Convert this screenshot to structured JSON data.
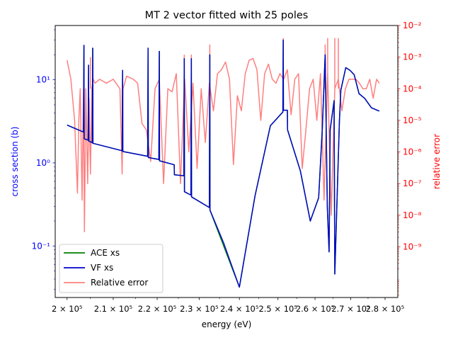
{
  "chart_data": {
    "type": "line",
    "title": "MT 2 vector fitted with 25 poles",
    "xlabel": "energy (eV)",
    "ylabel_left": "cross section (b)",
    "ylabel_right": "relative error",
    "x_scale": "log",
    "y_left_scale": "log",
    "y_right_scale": "log",
    "xlim": [
      197500,
      283800
    ],
    "ylim_left": [
      0.024,
      45
    ],
    "ylim_right": [
      2.5e-11,
      0.01
    ],
    "x_ticks": [
      {
        "value": 200000,
        "label": "2 × 10⁵"
      },
      {
        "value": 210000,
        "label": "2.1 × 10⁵"
      },
      {
        "value": 220000,
        "label": "2.2 × 10⁵"
      },
      {
        "value": 230000,
        "label": "2.3 × 10⁵"
      },
      {
        "value": 240000,
        "label": "2.4 × 10⁵"
      },
      {
        "value": 250000,
        "label": "2.5 × 10⁵"
      },
      {
        "value": 260000,
        "label": "2.6 × 10⁵"
      },
      {
        "value": 270000,
        "label": "2.7 × 10⁵"
      },
      {
        "value": 280000,
        "label": "2.8 × 10⁵"
      }
    ],
    "y_left_ticks": [
      {
        "value": 0.1,
        "label": "10⁻¹"
      },
      {
        "value": 1,
        "label": "10⁰"
      },
      {
        "value": 10,
        "label": "10¹"
      }
    ],
    "y_right_ticks": [
      {
        "value": 1e-09,
        "label": "10⁻⁹"
      },
      {
        "value": 1e-08,
        "label": "10⁻⁸"
      },
      {
        "value": 1e-07,
        "label": "10⁻⁷"
      },
      {
        "value": 1e-06,
        "label": "10⁻⁶"
      },
      {
        "value": 1e-05,
        "label": "10⁻⁵"
      },
      {
        "value": 0.0001,
        "label": "10⁻⁴"
      },
      {
        "value": 0.001,
        "label": "10⁻³"
      },
      {
        "value": 0.01,
        "label": "10⁻²"
      }
    ],
    "left_axis_color": "#0000ff",
    "right_axis_color": "#ff0000",
    "legend_position": "lower-left",
    "series": [
      {
        "name": "ACE xs",
        "axis": "left",
        "color": "#008000",
        "x": [
          200000,
          203500,
          203600,
          203650,
          204500,
          204600,
          204650,
          205400,
          205500,
          205550,
          212000,
          212100,
          212150,
          217800,
          217900,
          217950,
          220400,
          220500,
          220550,
          224000,
          224050,
          226300,
          226400,
          226450,
          228000,
          228100,
          228150,
          232500,
          232600,
          232650,
          240000,
          244000,
          248000,
          251300,
          251400,
          251450,
          252500,
          252550,
          256000,
          258700,
          261000,
          262000,
          262800,
          263400,
          263900,
          264200,
          265300,
          265500,
          266800,
          267200,
          268600,
          269800,
          271000,
          272400,
          274000,
          276000,
          278300
        ],
        "y": [
          2.85,
          2.35,
          26,
          1.95,
          1.88,
          15,
          1.83,
          1.75,
          24,
          1.72,
          1.4,
          13,
          1.37,
          1.2,
          24,
          1.16,
          1.1,
          22,
          1.06,
          0.95,
          0.72,
          0.7,
          18,
          0.45,
          0.41,
          18,
          0.39,
          0.29,
          20,
          0.27,
          0.032,
          0.4,
          2.8,
          4.1,
          30,
          4.3,
          4.3,
          2.5,
          0.8,
          0.2,
          0.38,
          2.5,
          20,
          0.3,
          0.085,
          2.5,
          5.6,
          0.046,
          3.2,
          7.5,
          14,
          13,
          11.5,
          6.8,
          6,
          4.6,
          4.2
        ]
      },
      {
        "name": "VF xs",
        "axis": "left",
        "color": "#0000cc",
        "x": [
          200000,
          203500,
          203600,
          203650,
          204500,
          204600,
          204650,
          205400,
          205500,
          205550,
          212000,
          212100,
          212150,
          217800,
          217900,
          217950,
          220400,
          220500,
          220550,
          224000,
          224050,
          226300,
          226400,
          226450,
          228000,
          228100,
          228150,
          232500,
          232600,
          232650,
          236000,
          240000,
          244000,
          248000,
          251300,
          251400,
          251450,
          252500,
          252550,
          256000,
          258700,
          261000,
          262000,
          262800,
          263400,
          263900,
          264200,
          265300,
          265500,
          266800,
          267200,
          268600,
          269800,
          271000,
          272400,
          274000,
          276000,
          278300
        ],
        "y": [
          2.85,
          2.35,
          26,
          1.95,
          1.88,
          15,
          1.83,
          1.75,
          24,
          1.72,
          1.4,
          13,
          1.37,
          1.2,
          24,
          1.16,
          1.1,
          22,
          1.06,
          0.95,
          0.72,
          0.7,
          18,
          0.45,
          0.41,
          18,
          0.39,
          0.29,
          20,
          0.27,
          0.11,
          0.032,
          0.4,
          2.8,
          4.1,
          30,
          4.3,
          4.3,
          2.5,
          0.8,
          0.2,
          0.38,
          2.5,
          20,
          0.3,
          0.085,
          2.5,
          5.6,
          0.046,
          3.2,
          7.5,
          14,
          13,
          11.5,
          6.8,
          6,
          4.6,
          4.2
        ]
      },
      {
        "name": "Relative error",
        "axis": "right",
        "color": "#ff7f7f",
        "x": [
          200000,
          200800,
          201600,
          202200,
          202500,
          202800,
          203200,
          203500,
          203700,
          204000,
          204400,
          204700,
          205000,
          205300,
          205600,
          206000,
          207000,
          208500,
          210000,
          211500,
          212000,
          212200,
          213000,
          214500,
          215500,
          216500,
          217500,
          218500,
          219500,
          220500,
          221500,
          222500,
          223500,
          224500,
          225500,
          226500,
          227500,
          228500,
          229500,
          230500,
          231500,
          232500,
          233500,
          234500,
          235500,
          236500,
          237500,
          238500,
          239500,
          240500,
          241500,
          242500,
          243500,
          244500,
          245500,
          246500,
          247500,
          248500,
          249500,
          250500,
          251500,
          252500,
          253500,
          254500,
          255500,
          256500,
          257500,
          258500,
          259500,
          260500,
          261500,
          262500,
          263500,
          264500,
          265500,
          266500,
          267500,
          268500,
          269500,
          270500,
          271500,
          272500,
          273500,
          274500,
          275500,
          276500,
          277500,
          278300
        ],
        "y": [
          0.0008,
          0.0002,
          1e-05,
          5e-08,
          1e-05,
          0.0001,
          3e-08,
          0.0001,
          3e-09,
          0.0001,
          1e-07,
          5e-05,
          2e-07,
          0.0001,
          0.0002,
          0.00015,
          0.0002,
          0.00015,
          0.0002,
          0.0001,
          2e-07,
          0.0001,
          0.00025,
          0.0002,
          0.00015,
          8e-06,
          5e-06,
          5e-07,
          0.0001,
          0.0002,
          1e-07,
          0.0001,
          8e-05,
          0.0003,
          1e-07,
          0.0002,
          1e-06,
          0.00015,
          3e-07,
          0.0001,
          2e-06,
          0.00015,
          2e-05,
          0.0003,
          0.0004,
          0.0007,
          0.0002,
          4e-07,
          6e-05,
          2e-05,
          0.0003,
          0.0008,
          0.0009,
          0.0004,
          1e-05,
          0.0003,
          0.0006,
          0.0002,
          0.00015,
          0.0003,
          0.0002,
          0.0004,
          1.5e-05,
          0.0002,
          0.0003,
          3e-07,
          5e-06,
          0.0001,
          0.0002,
          1e-05,
          0.0003,
          3e-08,
          0.0003,
          1e-08,
          0.0001,
          0.0002,
          2e-05,
          0.0001,
          0.0002,
          0.0002,
          0.0002,
          0.00015,
          0.0001,
          0.0001,
          0.0002,
          5e-05,
          0.0002,
          0.00015
        ]
      }
    ],
    "error_spikes": {
      "x": [
        203600,
        205000,
        217900,
        220500,
        226400,
        228100,
        232600,
        251400,
        262800,
        263500,
        265500,
        266500
      ],
      "y": [
        0.0009,
        0.001,
        0.0012,
        0.001,
        0.0012,
        0.0012,
        0.0025,
        0.004,
        0.0025,
        0.004,
        0.004,
        0.004
      ]
    }
  }
}
